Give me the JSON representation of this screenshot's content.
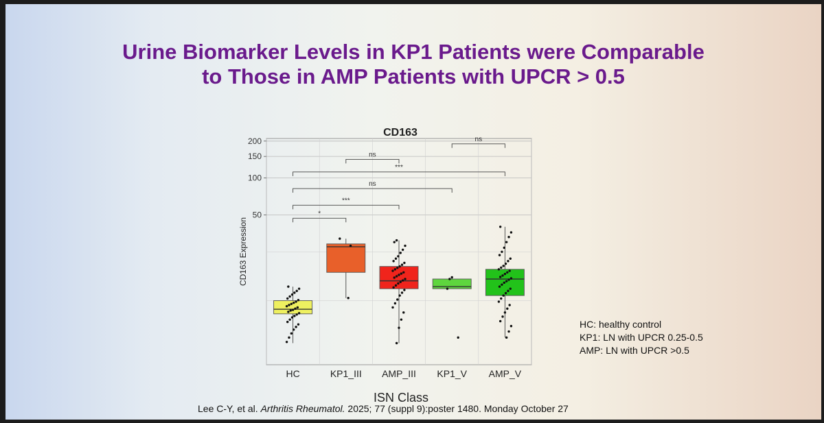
{
  "slide": {
    "title_line1": "Urine Biomarker Levels in KP1 Patients were Comparable",
    "title_line2": "to Those in AMP Patients with UPCR > 0.5",
    "title_color": "#6a1a8c",
    "legend_notes": [
      "HC: healthy control",
      "KP1: LN with UPCR 0.25-0.5",
      "AMP: LN with UPCR >0.5"
    ],
    "citation": {
      "authors": "Lee C-Y, et al.",
      "journal": "Arthritis Rheumatol.",
      "details": "2025; 77 (suppl 9):poster 1480. Monday October 27"
    }
  },
  "chart_data": {
    "type": "box",
    "title": "CD163",
    "xlabel": "ISN Class",
    "ylabel": "CD163 Expression",
    "yscale": "log",
    "ylim": [
      3,
      210
    ],
    "yticks": [
      50,
      100,
      150,
      200
    ],
    "grid": true,
    "categories": [
      "HC",
      "KP1_III",
      "AMP_III",
      "KP1_V",
      "AMP_V"
    ],
    "colors": [
      "#eef060",
      "#e8602a",
      "#f0241c",
      "#5ed63e",
      "#22c21a"
    ],
    "boxes": [
      {
        "category": "HC",
        "whisker_low": 4.5,
        "q1": 7.8,
        "median": 8.5,
        "q3": 10.0,
        "whisker_high": 13.0
      },
      {
        "category": "KP1_III",
        "whisker_low": 10.5,
        "q1": 17.0,
        "median": 27.5,
        "q3": 29.0,
        "whisker_high": 32.0
      },
      {
        "category": "AMP_III",
        "whisker_low": 4.5,
        "q1": 12.5,
        "median": 14.5,
        "q3": 19.0,
        "whisker_high": 31.0
      },
      {
        "category": "KP1_V",
        "whisker_low": 12.5,
        "q1": 12.5,
        "median": 13.0,
        "q3": 15.0,
        "whisker_high": 15.5
      },
      {
        "category": "AMP_V",
        "whisker_low": 5.0,
        "q1": 11.0,
        "median": 15.0,
        "q3": 18.0,
        "whisker_high": 40.0
      }
    ],
    "points": [
      {
        "category": "HC",
        "values": [
          4.6,
          5.0,
          5.4,
          5.8,
          6.1,
          6.4,
          6.7,
          7.0,
          7.3,
          7.5,
          7.7,
          7.9,
          8.1,
          8.3,
          8.4,
          8.6,
          8.8,
          9.0,
          9.2,
          9.4,
          9.6,
          9.8,
          10.1,
          10.4,
          10.8,
          11.2,
          11.6,
          12.0,
          12.5,
          13.0
        ]
      },
      {
        "category": "KP1_III",
        "values": [
          10.5,
          28.0,
          32.0
        ]
      },
      {
        "category": "AMP_III",
        "values": [
          4.5,
          6.0,
          7.0,
          8.0,
          8.8,
          9.5,
          10.2,
          11.0,
          11.6,
          12.2,
          12.8,
          13.3,
          13.8,
          14.2,
          14.6,
          15.0,
          15.4,
          15.8,
          16.2,
          16.6,
          17.0,
          17.5,
          18.0,
          18.5,
          19.0,
          19.6,
          20.3,
          21.0,
          22.0,
          23.0,
          24.5,
          26.0,
          28.0,
          30.0,
          31.0
        ]
      },
      {
        "category": "KP1_V",
        "values": [
          5.0,
          12.5,
          15.0,
          15.5
        ]
      },
      {
        "category": "AMP_V",
        "values": [
          5.0,
          5.6,
          6.2,
          6.8,
          7.4,
          8.0,
          8.6,
          9.2,
          9.8,
          10.4,
          11.0,
          11.5,
          12.0,
          12.5,
          13.0,
          13.5,
          14.0,
          14.4,
          14.8,
          15.2,
          15.6,
          16.0,
          16.5,
          17.0,
          17.5,
          18.0,
          18.6,
          19.2,
          20.0,
          21.0,
          22.0,
          23.5,
          25.0,
          27.0,
          30.0,
          33.0,
          36.0,
          40.0
        ]
      }
    ],
    "comparisons": [
      {
        "from": "HC",
        "to": "KP1_III",
        "label": "*",
        "y": 47
      },
      {
        "from": "HC",
        "to": "AMP_III",
        "label": "***",
        "y": 60
      },
      {
        "from": "HC",
        "to": "KP1_V",
        "label": "ns",
        "y": 82
      },
      {
        "from": "HC",
        "to": "AMP_V",
        "label": "***",
        "y": 112
      },
      {
        "from": "KP1_III",
        "to": "AMP_III",
        "label": "ns",
        "y": 142
      },
      {
        "from": "KP1_V",
        "to": "AMP_V",
        "label": "ns",
        "y": 190
      }
    ]
  }
}
